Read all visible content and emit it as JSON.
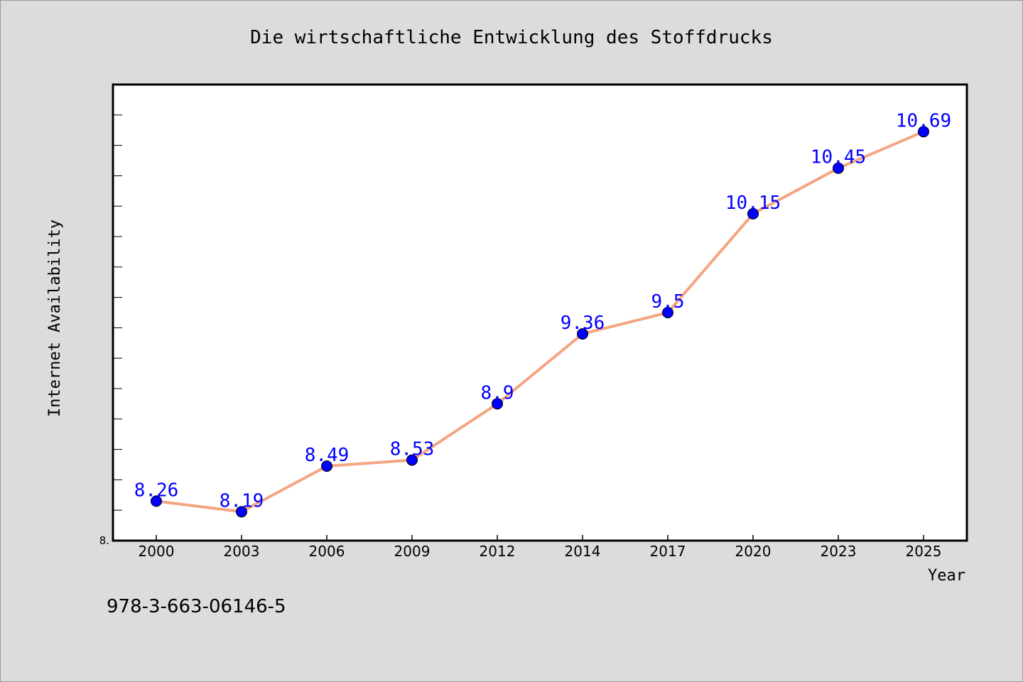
{
  "chart_data": {
    "type": "line",
    "title": "Die wirtschaftliche Entwicklung des Stoffdrucks",
    "xlabel": "Year",
    "ylabel": "Internet Availability",
    "categories": [
      "2000",
      "2003",
      "2006",
      "2009",
      "2012",
      "2014",
      "2017",
      "2020",
      "2023",
      "2025"
    ],
    "values": [
      8.26,
      8.19,
      8.49,
      8.53,
      8.9,
      9.36,
      9.5,
      10.15,
      10.45,
      10.69
    ],
    "data_labels": [
      "8.26",
      "8.19",
      "8.49",
      "8.53",
      "8.9",
      "9.36",
      "9.5",
      "10.15",
      "10.45",
      "10.69"
    ],
    "ytick_label": "8.",
    "ylim": [
      8.0,
      11.0
    ],
    "grid": false,
    "legend": "none",
    "annotation": "978-3-663-06146-5",
    "colors": {
      "line": "#f4a582",
      "marker": "#0000ff",
      "data_label": "#0000ff",
      "plot_bg": "#ffffff",
      "page_bg": "#dcdcdc"
    }
  }
}
